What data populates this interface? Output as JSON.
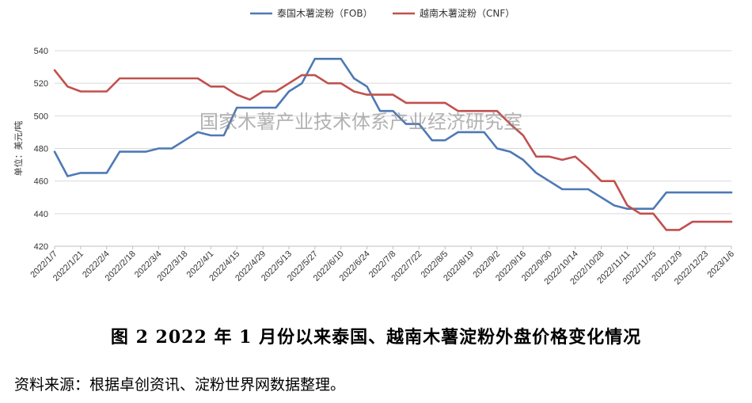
{
  "chart_data": {
    "type": "line",
    "ylabel": "单位：美元/吨",
    "ylim": [
      420,
      540
    ],
    "yticks": [
      420,
      440,
      460,
      480,
      500,
      520,
      540
    ],
    "grid": "horizontal",
    "legend_position": "top",
    "watermark": "国家木薯产业技术体系产业经济研究室",
    "x": [
      "2022/1/7",
      "",
      "2022/1/21",
      "",
      "2022/2/4",
      "",
      "2022/2/18",
      "",
      "2022/3/4",
      "",
      "2022/3/18",
      "",
      "2022/4/1",
      "",
      "2022/4/15",
      "",
      "2022/4/29",
      "",
      "2022/5/13",
      "",
      "2022/5/27",
      "",
      "2022/6/10",
      "",
      "2022/6/24",
      "",
      "2022/7/8",
      "",
      "2022/7/22",
      "",
      "2022/8/5",
      "",
      "2022/8/19",
      "",
      "2022/9/2",
      "",
      "2022/9/16",
      "",
      "2022/9/30",
      "",
      "2022/10/14",
      "",
      "2022/10/28",
      "",
      "2022/11/11",
      "",
      "2022/11/25",
      "",
      "2022/12/9",
      "",
      "2022/12/23",
      "",
      "2023/1/6"
    ],
    "series": [
      {
        "name": "泰国木薯淀粉（FOB）",
        "color": "#4E79B5",
        "values": [
          478,
          463,
          465,
          465,
          465,
          478,
          478,
          478,
          480,
          480,
          485,
          490,
          488,
          488,
          505,
          505,
          505,
          505,
          515,
          520,
          535,
          535,
          535,
          523,
          518,
          503,
          503,
          495,
          495,
          485,
          485,
          490,
          490,
          490,
          480,
          478,
          473,
          465,
          460,
          455,
          455,
          455,
          450,
          445,
          443,
          443,
          443,
          453,
          453,
          453,
          453,
          453,
          453
        ]
      },
      {
        "name": "越南木薯淀粉（CNF）",
        "color": "#C0504D",
        "values": [
          528,
          518,
          515,
          515,
          515,
          523,
          523,
          523,
          523,
          523,
          523,
          523,
          518,
          518,
          513,
          510,
          515,
          515,
          520,
          525,
          525,
          520,
          520,
          515,
          513,
          513,
          513,
          508,
          508,
          508,
          508,
          503,
          503,
          503,
          503,
          495,
          488,
          475,
          475,
          473,
          475,
          468,
          460,
          460,
          445,
          440,
          440,
          430,
          430,
          435,
          435,
          435,
          435
        ]
      }
    ]
  },
  "caption": "图 2   2022 年 1 月份以来泰国、越南木薯淀粉外盘价格变化情况",
  "source_note": "资料来源：根据卓创资讯、淀粉世界网数据整理。"
}
